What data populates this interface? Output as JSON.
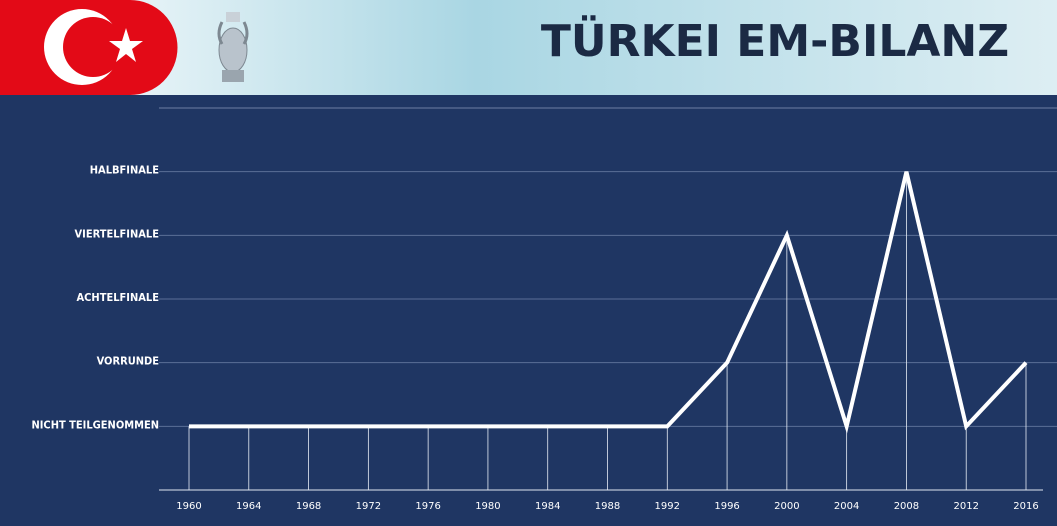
{
  "chart_data": {
    "type": "line",
    "title": "TÜRKEI EM-BILANZ",
    "categories": [
      "1960",
      "1964",
      "1968",
      "1972",
      "1976",
      "1980",
      "1984",
      "1988",
      "1992",
      "1996",
      "2000",
      "2004",
      "2008",
      "2012",
      "2016"
    ],
    "series": [
      {
        "name": "Türkei",
        "color": "#ffffff",
        "values": [
          0,
          0,
          0,
          0,
          0,
          0,
          0,
          0,
          0,
          1,
          3,
          0,
          4,
          0,
          1
        ]
      }
    ],
    "ylim": [
      -1,
      5
    ],
    "yticks": [
      {
        "value": 0,
        "label": "NICHT TEILGENOMMEN"
      },
      {
        "value": 1,
        "label": "VORRUNDE"
      },
      {
        "value": 2,
        "label": "ACHTELFINALE"
      },
      {
        "value": 3,
        "label": "VIERTELFINALE"
      },
      {
        "value": 4,
        "label": "HALBFINALE"
      }
    ],
    "grid": true
  }
}
